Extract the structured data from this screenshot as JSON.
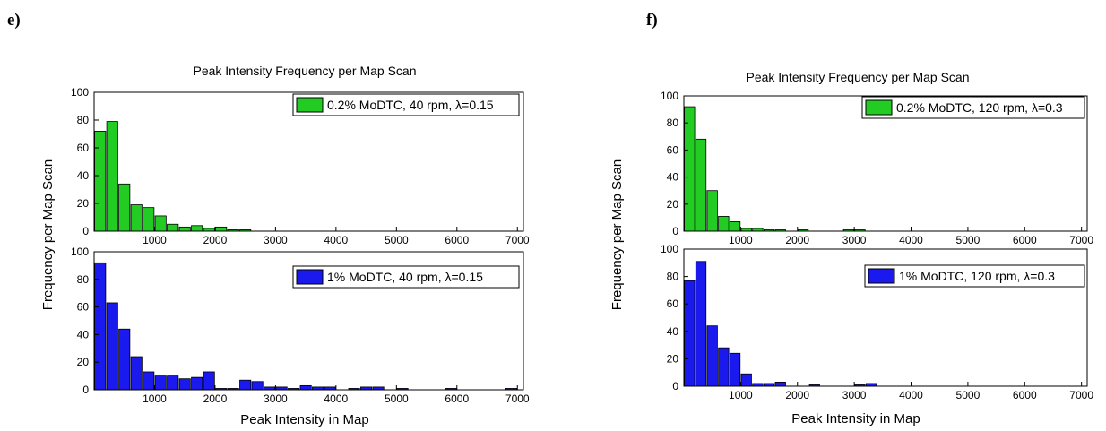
{
  "panels": [
    {
      "label": "e)",
      "title": "Peak Intensity Frequency per Map Scan",
      "ylabel": "Frequency per Map Scan",
      "xlabel": "Peak Intensity in Map"
    },
    {
      "label": "f)",
      "title": "Peak Intensity Frequency per Map Scan",
      "ylabel": "Frequency per Map Scan",
      "xlabel": "Peak Intensity in Map"
    }
  ],
  "chart_data": [
    {
      "type": "bar",
      "title": "Peak Intensity Frequency per Map Scan",
      "ylabel": "Frequency per Map Scan",
      "xlabel": "Peak Intensity in Map",
      "subplots": [
        {
          "legend": "0.2% MoDTC, 40 rpm, λ=0.15",
          "color": "#22cc22",
          "xlim": [
            0,
            7100
          ],
          "ylim": [
            0,
            100
          ],
          "xticks": [
            1000,
            2000,
            3000,
            4000,
            5000,
            6000,
            7000
          ],
          "yticks": [
            0,
            20,
            40,
            60,
            80,
            100
          ],
          "bin_width": 200,
          "bins": [
            200,
            400,
            600,
            800,
            1000,
            1200,
            1400,
            1600,
            1800,
            2000,
            2200,
            2400,
            2600
          ],
          "values": [
            72,
            79,
            34,
            19,
            17,
            11,
            5,
            3,
            4,
            2,
            3,
            1,
            1
          ]
        },
        {
          "legend": "1% MoDTC, 40 rpm, λ=0.15",
          "color": "#1a1aee",
          "xlim": [
            0,
            7100
          ],
          "ylim": [
            0,
            100
          ],
          "xticks": [
            1000,
            2000,
            3000,
            4000,
            5000,
            6000,
            7000
          ],
          "yticks": [
            0,
            20,
            40,
            60,
            80,
            100
          ],
          "bin_width": 200,
          "bins": [
            200,
            400,
            600,
            800,
            1000,
            1200,
            1400,
            1600,
            1800,
            2000,
            2200,
            2400,
            2600,
            2800,
            3000,
            3200,
            3400,
            3600,
            3800,
            4000,
            4400,
            4600,
            4800,
            5200,
            6000,
            7000
          ],
          "values": [
            92,
            63,
            44,
            24,
            13,
            10,
            10,
            8,
            9,
            13,
            1,
            1,
            7,
            6,
            2,
            2,
            1,
            3,
            2,
            2,
            1,
            2,
            2,
            1,
            1,
            1
          ]
        }
      ]
    },
    {
      "type": "bar",
      "title": "Peak Intensity Frequency per Map Scan",
      "ylabel": "Frequency per Map Scan",
      "xlabel": "Peak Intensity in Map",
      "subplots": [
        {
          "legend": "0.2% MoDTC, 120 rpm, λ=0.3",
          "color": "#22cc22",
          "xlim": [
            0,
            7100
          ],
          "ylim": [
            0,
            100
          ],
          "xticks": [
            1000,
            2000,
            3000,
            4000,
            5000,
            6000,
            7000
          ],
          "yticks": [
            0,
            20,
            40,
            60,
            80,
            100
          ],
          "bin_width": 200,
          "bins": [
            200,
            400,
            600,
            800,
            1000,
            1200,
            1400,
            1600,
            1800,
            2200,
            3000,
            3200
          ],
          "values": [
            92,
            68,
            30,
            11,
            7,
            2,
            2,
            1,
            1,
            1,
            1,
            1
          ]
        },
        {
          "legend": "1% MoDTC, 120 rpm, λ=0.3",
          "color": "#1a1aee",
          "xlim": [
            0,
            7100
          ],
          "ylim": [
            0,
            100
          ],
          "xticks": [
            1000,
            2000,
            3000,
            4000,
            5000,
            6000,
            7000
          ],
          "yticks": [
            0,
            20,
            40,
            60,
            80,
            100
          ],
          "bin_width": 200,
          "bins": [
            200,
            400,
            600,
            800,
            1000,
            1200,
            1400,
            1600,
            1800,
            2400,
            3200,
            3400
          ],
          "values": [
            77,
            91,
            44,
            28,
            24,
            9,
            2,
            2,
            3,
            1,
            1,
            2
          ]
        }
      ]
    }
  ]
}
